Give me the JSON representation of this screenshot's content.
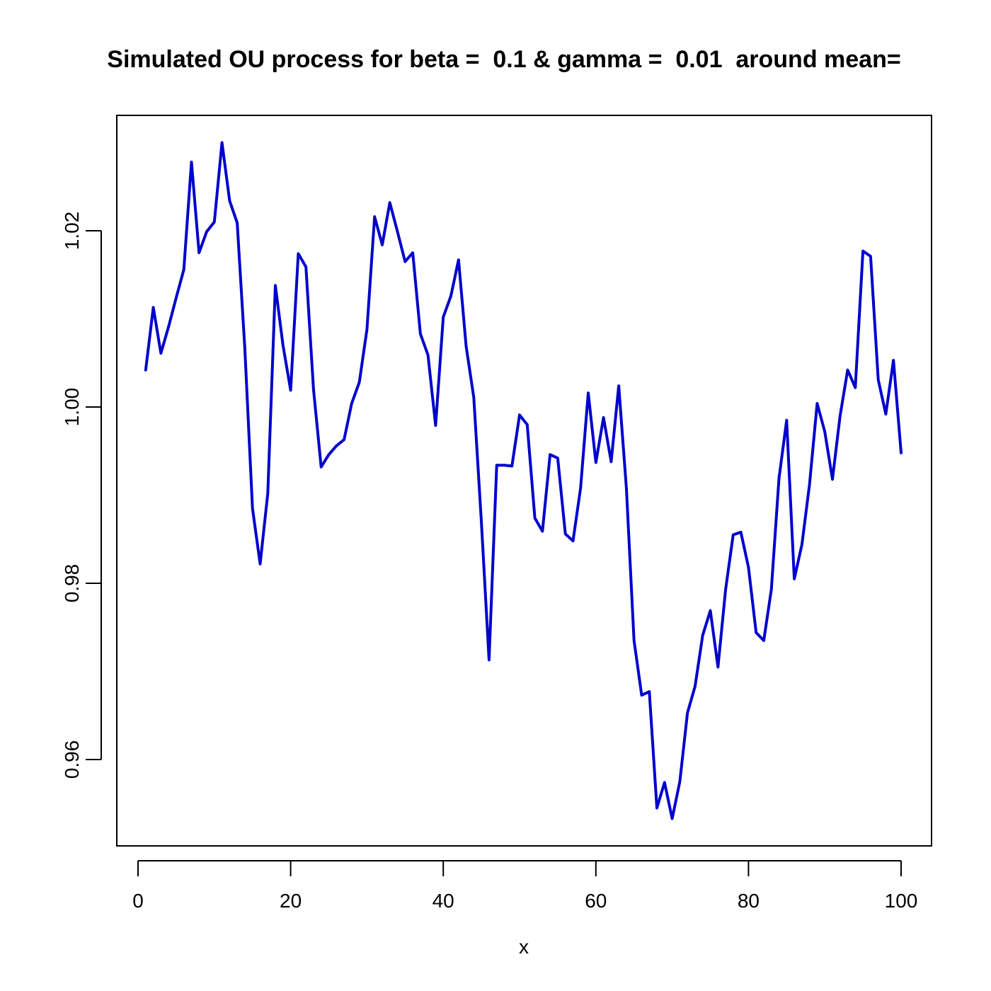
{
  "chart_data": {
    "type": "line",
    "title": "Simulated OU process for beta =  0.1 & gamma =  0.01  around mean=",
    "xlabel": "x",
    "ylabel": "",
    "xlim": [
      0,
      100
    ],
    "ylim": [
      0.952,
      1.031
    ],
    "x_ticks": [
      0,
      20,
      40,
      60,
      80,
      100
    ],
    "x_tick_labels": [
      "0",
      "20",
      "40",
      "60",
      "80",
      "100"
    ],
    "y_ticks": [
      0.96,
      0.98,
      1.0,
      1.02
    ],
    "y_tick_labels": [
      "0.96",
      "0.98",
      "1.00",
      "1.02"
    ],
    "grid": false,
    "legend": "none",
    "series": [
      {
        "color": "#0000cd",
        "x": [
          1,
          2,
          3,
          4,
          5,
          6,
          7,
          8,
          9,
          10,
          11,
          12,
          13,
          14,
          15,
          16,
          17,
          18,
          19,
          20,
          21,
          22,
          23,
          24,
          25,
          26,
          27,
          28,
          29,
          30,
          31,
          32,
          33,
          34,
          35,
          36,
          37,
          38,
          39,
          40,
          41,
          42,
          43,
          44,
          45,
          46,
          47,
          48,
          49,
          50,
          51,
          52,
          53,
          54,
          55,
          56,
          57,
          58,
          59,
          60,
          61,
          62,
          63,
          64,
          65,
          66,
          67,
          68,
          69,
          70,
          71,
          72,
          73,
          74,
          75,
          76,
          77,
          78,
          79,
          80,
          81,
          82,
          83,
          84,
          85,
          86,
          87,
          88,
          89,
          90,
          91,
          92,
          93,
          94,
          95,
          96,
          97,
          98,
          99,
          100
        ],
        "y": [
          1.0042,
          1.0113,
          1.0061,
          1.0091,
          1.0124,
          1.0156,
          1.0278,
          1.0175,
          1.0199,
          1.021,
          1.03,
          1.0234,
          1.0209,
          1.0066,
          0.9885,
          0.9822,
          0.9902,
          1.0138,
          1.007,
          1.0019,
          1.0174,
          1.0159,
          1.002,
          0.9932,
          0.9946,
          0.9956,
          0.9963,
          1.0004,
          1.0028,
          1.0088,
          1.0216,
          1.0184,
          1.0232,
          1.0199,
          1.0165,
          1.0175,
          1.0083,
          1.0059,
          0.9979,
          1.0102,
          1.0126,
          1.0167,
          1.0069,
          1.0011,
          0.9869,
          0.9713,
          0.9934,
          0.9934,
          0.9933,
          0.9991,
          0.998,
          0.9874,
          0.9859,
          0.9946,
          0.9942,
          0.9856,
          0.9848,
          0.9908,
          1.0016,
          0.9937,
          0.9988,
          0.9938,
          1.0024,
          0.9908,
          0.9735,
          0.9673,
          0.9677,
          0.9545,
          0.9574,
          0.9533,
          0.9575,
          0.9653,
          0.9683,
          0.9741,
          0.9769,
          0.9705,
          0.9793,
          0.9855,
          0.9858,
          0.9818,
          0.9744,
          0.9735,
          0.9793,
          0.9919,
          0.9985,
          0.9805,
          0.9844,
          0.9912,
          1.0004,
          0.9972,
          0.9918,
          0.999,
          1.0042,
          1.0022,
          1.0177,
          1.0171,
          1.0031,
          0.9992,
          1.0053,
          0.9948
        ]
      }
    ]
  }
}
